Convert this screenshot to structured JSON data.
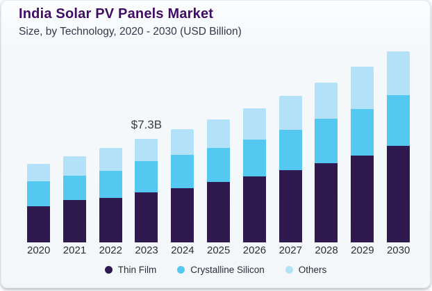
{
  "header": {
    "title": "India Solar PV Panels Market",
    "subtitle": "Size, by Technology, 2020 - 2030 (USD Billion)"
  },
  "colors": {
    "thin_film": "#2e1a4e",
    "crystalline_silicon": "#55c8f2",
    "others": "#b3e2f8",
    "title_text": "#410c63",
    "subtitle_text": "#38354a",
    "axis_text": "#2c2c35",
    "annotation_text": "#3b3b3b",
    "card_background": "#f4f8fb"
  },
  "chart_data": {
    "type": "bar",
    "stacked": true,
    "title": "India Solar PV Panels Market",
    "subtitle": "Size, by Technology, 2020 - 2030 (USD Billion)",
    "unit": "USD Billion",
    "categories": [
      "2020",
      "2021",
      "2022",
      "2023",
      "2024",
      "2025",
      "2026",
      "2027",
      "2028",
      "2029",
      "2030"
    ],
    "series": [
      {
        "name": "Thin Film",
        "color": "#2e1a4e",
        "values": [
          2.55,
          2.99,
          3.14,
          3.53,
          3.82,
          4.26,
          4.65,
          5.1,
          5.59,
          6.12,
          6.81
        ]
      },
      {
        "name": "Crystalline Silicon",
        "color": "#55c8f2",
        "values": [
          1.76,
          1.71,
          1.91,
          2.2,
          2.35,
          2.4,
          2.6,
          2.84,
          3.14,
          3.28,
          3.58
        ]
      },
      {
        "name": "Others",
        "color": "#b3e2f8",
        "values": [
          1.22,
          1.37,
          1.62,
          1.57,
          1.81,
          2.01,
          2.2,
          2.4,
          2.55,
          2.99,
          3.09
        ]
      }
    ],
    "totals": [
      5.53,
      6.07,
      6.67,
      7.3,
      7.98,
      8.67,
      9.45,
      10.34,
      11.28,
      12.39,
      13.48
    ],
    "annotations": [
      {
        "category": "2023",
        "text": "$7.3B"
      }
    ],
    "ylim": [
      0,
      14
    ],
    "grid": false,
    "legend_position": "bottom"
  }
}
